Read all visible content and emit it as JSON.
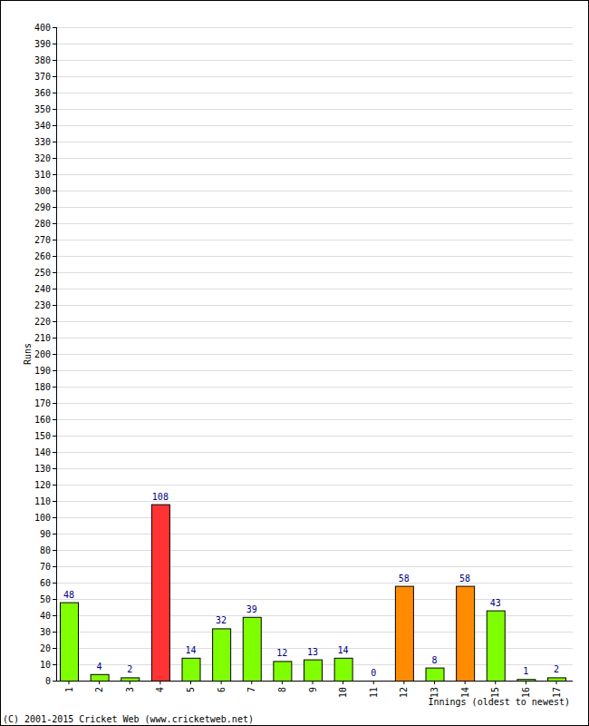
{
  "chart_data": {
    "type": "bar",
    "y_label": "Runs",
    "x_label": "Innings (oldest to newest)",
    "annotations": [
      "(C) 2001-2015 Cricket Web (www.cricketweb.net)"
    ],
    "categories": [
      "1",
      "2",
      "3",
      "4",
      "5",
      "6",
      "7",
      "8",
      "9",
      "10",
      "11",
      "12",
      "13",
      "14",
      "15",
      "16",
      "17"
    ],
    "values": [
      48,
      4,
      2,
      108,
      14,
      32,
      39,
      12,
      13,
      14,
      0,
      58,
      8,
      58,
      43,
      1,
      2
    ],
    "colors": [
      "#80ff00",
      "#80ff00",
      "#80ff00",
      "#ff3333",
      "#80ff00",
      "#80ff00",
      "#80ff00",
      "#80ff00",
      "#80ff00",
      "#80ff00",
      "#80ff00",
      "#ff8c00",
      "#80ff00",
      "#ff8c00",
      "#80ff00",
      "#80ff00",
      "#80ff00"
    ],
    "ylim": [
      0,
      400
    ],
    "yticks": [
      0,
      10,
      20,
      30,
      40,
      50,
      60,
      70,
      80,
      90,
      100,
      110,
      120,
      130,
      140,
      150,
      160,
      170,
      180,
      190,
      200,
      210,
      220,
      230,
      240,
      250,
      260,
      270,
      280,
      290,
      300,
      310,
      320,
      330,
      340,
      350,
      360,
      370,
      380,
      390,
      400
    ],
    "grid": true,
    "data_labels": true
  }
}
